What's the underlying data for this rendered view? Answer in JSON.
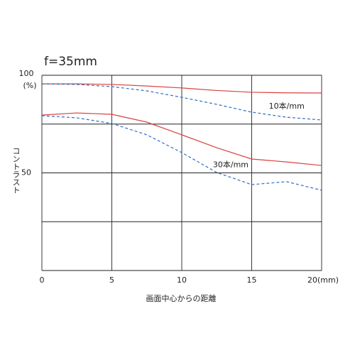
{
  "chart_data": {
    "type": "line",
    "title": "f=35mm",
    "y_unit": "(%)",
    "ylabel": "コントラスト",
    "xlabel": "画面中心からの距離",
    "x": [
      0,
      2.5,
      5,
      7.5,
      10,
      12.5,
      15,
      17.5,
      20
    ],
    "series": [
      {
        "color": "#d9423f",
        "dash": false,
        "values": [
          95.6,
          95.6,
          95.3,
          94.5,
          93.5,
          92.2,
          91.3,
          91.0,
          90.9
        ]
      },
      {
        "color": "#2f6fc4",
        "dash": true,
        "values": [
          95.6,
          95.3,
          94.2,
          92.0,
          88.7,
          85.1,
          81.1,
          78.5,
          77.1
        ]
      },
      {
        "color": "#d9423f",
        "dash": false,
        "values": [
          79.6,
          80.7,
          80.0,
          76.0,
          69.5,
          62.9,
          57.1,
          55.6,
          53.8
        ]
      },
      {
        "color": "#2f6fc4",
        "dash": true,
        "values": [
          79.3,
          78.2,
          75.3,
          69.5,
          60.4,
          50.2,
          44.0,
          45.5,
          41.1
        ]
      }
    ],
    "annotations": [
      {
        "text": "10本/mm",
        "x": 17.5,
        "y": 84
      },
      {
        "text": "30本/mm",
        "x": 13.5,
        "y": 54
      }
    ],
    "xlim": [
      0,
      20
    ],
    "xticks": [
      0,
      5,
      10,
      15,
      {
        "value": 20,
        "label": "20(mm)"
      }
    ],
    "ylim": [
      0,
      100
    ],
    "yticks": [
      {
        "value": 0,
        "label": null
      },
      {
        "value": 25,
        "label": null
      },
      50,
      {
        "value": 75,
        "label": null
      },
      100
    ],
    "grid": true
  }
}
